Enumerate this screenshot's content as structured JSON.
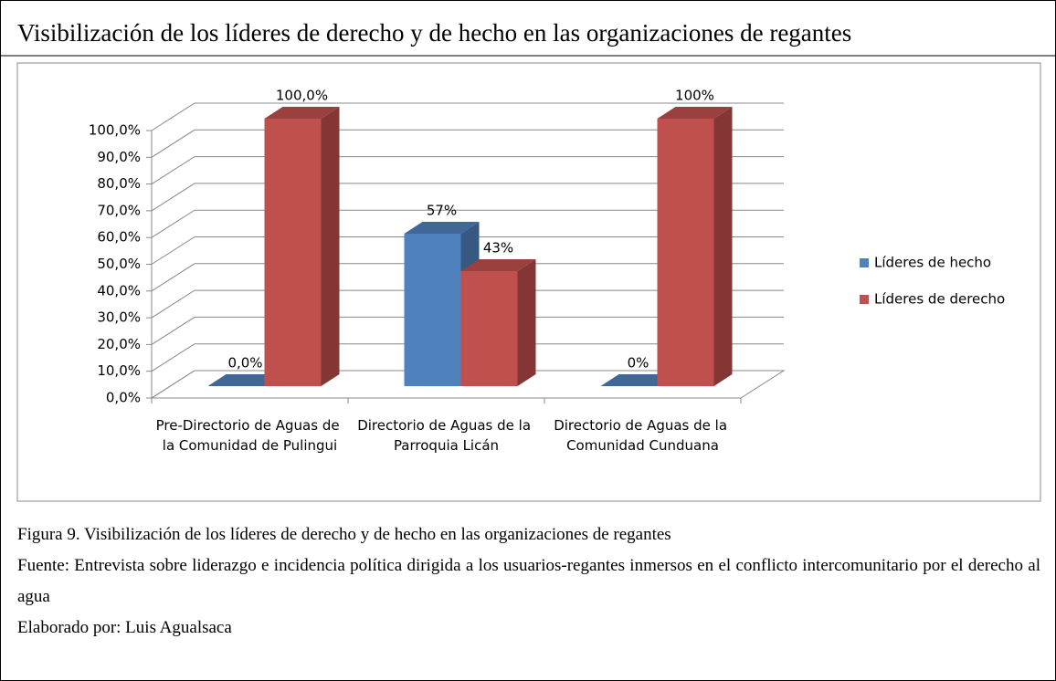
{
  "chart_data": {
    "type": "bar3d",
    "title": "Visibilización de los líderes de derecho y de hecho en las organizaciones de regantes",
    "categories": [
      "Pre-Directorio de Aguas de la Comunidad de Pulingui",
      "Directorio de Aguas de la Parroquia Licán",
      "Directorio de Aguas de la Comunidad Cunduana"
    ],
    "series": [
      {
        "name": "Líderes de hecho",
        "color": "#4f81bd",
        "values": [
          0,
          57,
          0
        ],
        "value_labels": [
          "0,0%",
          "57%",
          "0%"
        ]
      },
      {
        "name": "Líderes de derecho",
        "color": "#c0504d",
        "values": [
          100,
          43,
          100
        ],
        "value_labels": [
          "100,0%",
          "43%",
          "100%"
        ]
      }
    ],
    "ylim": [
      0,
      100
    ],
    "yticks": [
      {
        "value": 0,
        "label": "0,0%"
      },
      {
        "value": 10,
        "label": "10,0%"
      },
      {
        "value": 20,
        "label": "20,0%"
      },
      {
        "value": 30,
        "label": "30,0%"
      },
      {
        "value": 40,
        "label": "40,0%"
      },
      {
        "value": 50,
        "label": "50,0%"
      },
      {
        "value": 60,
        "label": "60,0%"
      },
      {
        "value": 70,
        "label": "70,0%"
      },
      {
        "value": 80,
        "label": "80,0%"
      },
      {
        "value": 90,
        "label": "90,0%"
      },
      {
        "value": 100,
        "label": "100,0%"
      }
    ],
    "grid": true,
    "legend": "right"
  },
  "figure": {
    "caption": "Figura 9. Visibilización de los líderes de derecho y de hecho en las organizaciones de regantes",
    "source": "Fuente: Entrevista sobre liderazgo e incidencia política dirigida a los usuarios-regantes inmersos en el conflicto intercomunitario por el derecho al agua",
    "author": "Elaborado por: Luis Agualsaca"
  }
}
